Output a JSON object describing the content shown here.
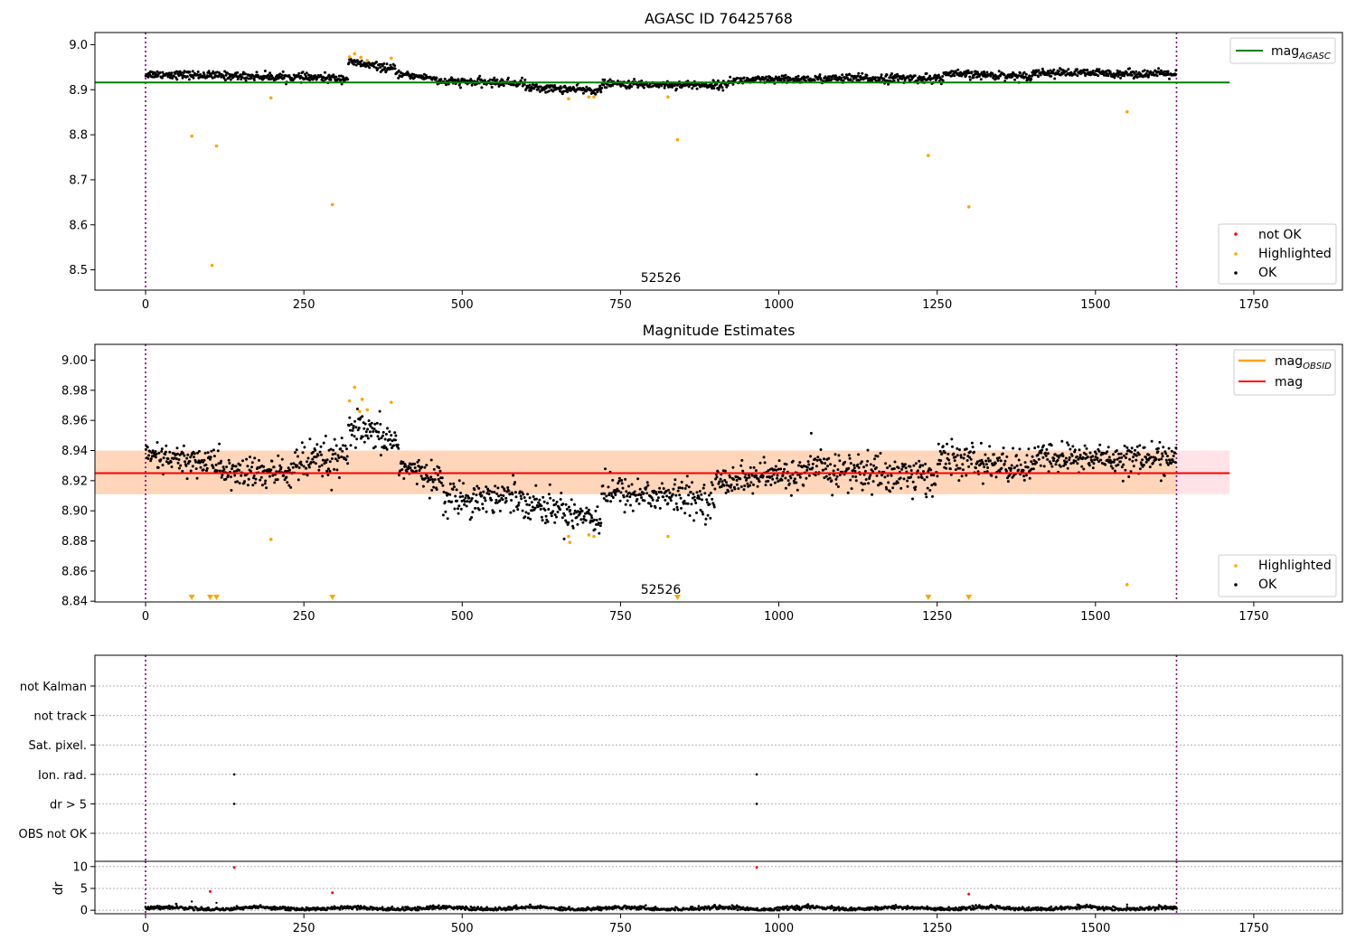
{
  "chart_data": [
    {
      "id": "top",
      "type": "scatter",
      "title": "AGASC ID 76425768",
      "xlim": [
        -80,
        1890
      ],
      "ylim": [
        8.455,
        9.027
      ],
      "xticks": [
        0,
        250,
        500,
        750,
        1000,
        1250,
        1500,
        1750
      ],
      "yticks": [
        8.5,
        8.6,
        8.7,
        8.8,
        8.9,
        9.0
      ],
      "ytick_labels": [
        "8.5",
        "8.6",
        "8.7",
        "8.8",
        "8.9",
        "9.0"
      ],
      "annotation": {
        "text": "52526",
        "x": 813,
        "y": 8.47
      },
      "vlines": [
        0,
        1628
      ],
      "hline": {
        "y": 8.916,
        "x_range": [
          -80,
          1712
        ],
        "color": "#008000"
      },
      "legend_upper": [
        {
          "label": "mag",
          "sub": "AGASC",
          "color": "#008000"
        }
      ],
      "legend_lower": [
        {
          "label": "not OK",
          "color": "#ff0000"
        },
        {
          "label": "Highlighted",
          "color": "#ffa500"
        },
        {
          "label": "OK",
          "color": "#000000"
        }
      ],
      "series": [
        {
          "kind": "ok",
          "color": "#000000",
          "segments": [
            {
              "x": [
                0,
                320
              ],
              "y": [
                8.935,
                8.925
              ],
              "spread": 0.008
            },
            {
              "x": [
                320,
                395
              ],
              "y": [
                8.962,
                8.945
              ],
              "spread": 0.008
            },
            {
              "x": [
                395,
                460
              ],
              "y": [
                8.935,
                8.925
              ],
              "spread": 0.006
            },
            {
              "x": [
                460,
                600
              ],
              "y": [
                8.918,
                8.915
              ],
              "spread": 0.008
            },
            {
              "x": [
                600,
                720
              ],
              "y": [
                8.905,
                8.898
              ],
              "spread": 0.008
            },
            {
              "x": [
                720,
                920
              ],
              "y": [
                8.913,
                8.91
              ],
              "spread": 0.008
            },
            {
              "x": [
                920,
                1100
              ],
              "y": [
                8.92,
                8.925
              ],
              "spread": 0.008
            },
            {
              "x": [
                1100,
                1260
              ],
              "y": [
                8.925,
                8.925
              ],
              "spread": 0.009
            },
            {
              "x": [
                1260,
                1400
              ],
              "y": [
                8.935,
                8.93
              ],
              "spread": 0.008
            },
            {
              "x": [
                1400,
                1628
              ],
              "y": [
                8.938,
                8.935
              ],
              "spread": 0.008
            }
          ]
        },
        {
          "kind": "highlighted",
          "color": "#ffa500",
          "points": [
            [
              73,
              8.797
            ],
            [
              105,
              8.51
            ],
            [
              112,
              8.775
            ],
            [
              198,
              8.882
            ],
            [
              295,
              8.645
            ],
            [
              322,
              8.973
            ],
            [
              330,
              8.98
            ],
            [
              340,
              8.972
            ],
            [
              350,
              8.965
            ],
            [
              388,
              8.97
            ],
            [
              668,
              8.88
            ],
            [
              700,
              8.884
            ],
            [
              708,
              8.884
            ],
            [
              825,
              8.884
            ],
            [
              840,
              8.789
            ],
            [
              1236,
              8.754
            ],
            [
              1300,
              8.64
            ],
            [
              1550,
              8.851
            ]
          ]
        }
      ]
    },
    {
      "id": "middle",
      "type": "scatter",
      "title": "Magnitude Estimates",
      "xlim": [
        -80,
        1890
      ],
      "ylim": [
        8.8395,
        9.0105
      ],
      "xticks": [
        0,
        250,
        500,
        750,
        1000,
        1250,
        1500,
        1750
      ],
      "yticks": [
        8.84,
        8.86,
        8.88,
        8.9,
        8.92,
        8.94,
        8.96,
        8.98,
        9.0
      ],
      "ytick_labels": [
        "8.84",
        "8.86",
        "8.88",
        "8.90",
        "8.92",
        "8.94",
        "8.96",
        "8.98",
        "9.00"
      ],
      "annotation": {
        "text": "52526",
        "x": 813,
        "y": 8.845
      },
      "vlines": [
        0,
        1628
      ],
      "hline": {
        "y": 8.925,
        "x_range": [
          -80,
          1712
        ],
        "color": "#ff0000"
      },
      "band": {
        "y_range": [
          8.911,
          8.94
        ],
        "x_range": [
          -80,
          1712
        ]
      },
      "legend_upper": [
        {
          "label": "mag",
          "sub": "OBSID",
          "color": "#ffa500"
        },
        {
          "label": "mag",
          "sub": "",
          "color": "#ff0000"
        }
      ],
      "legend_lower": [
        {
          "label": "Highlighted",
          "color": "#ffa500"
        },
        {
          "label": "OK",
          "color": "#000000"
        }
      ],
      "series": [
        {
          "kind": "ok",
          "color": "#000000",
          "segments": [
            {
              "x": [
                0,
                120
              ],
              "y": [
                8.935,
                8.932
              ],
              "spread": 0.009
            },
            {
              "x": [
                120,
                230
              ],
              "y": [
                8.925,
                8.925
              ],
              "spread": 0.01
            },
            {
              "x": [
                230,
                320
              ],
              "y": [
                8.93,
                8.935
              ],
              "spread": 0.012
            },
            {
              "x": [
                320,
                400
              ],
              "y": [
                8.955,
                8.945
              ],
              "spread": 0.01
            },
            {
              "x": [
                400,
                470
              ],
              "y": [
                8.93,
                8.92
              ],
              "spread": 0.008
            },
            {
              "x": [
                470,
                600
              ],
              "y": [
                8.908,
                8.91
              ],
              "spread": 0.01
            },
            {
              "x": [
                600,
                720
              ],
              "y": [
                8.905,
                8.895
              ],
              "spread": 0.01
            },
            {
              "x": [
                720,
                900
              ],
              "y": [
                8.913,
                8.907
              ],
              "spread": 0.01
            },
            {
              "x": [
                900,
                1050
              ],
              "y": [
                8.92,
                8.925
              ],
              "spread": 0.009
            },
            {
              "x": [
                1050,
                1250
              ],
              "y": [
                8.928,
                8.922
              ],
              "spread": 0.012
            },
            {
              "x": [
                1250,
                1400
              ],
              "y": [
                8.935,
                8.928
              ],
              "spread": 0.01
            },
            {
              "x": [
                1400,
                1628
              ],
              "y": [
                8.935,
                8.935
              ],
              "spread": 0.009
            }
          ]
        },
        {
          "kind": "highlighted",
          "color": "#ffa500",
          "points": [
            [
              198,
              8.881
            ],
            [
              322,
              8.973
            ],
            [
              330,
              8.982
            ],
            [
              338,
              8.966
            ],
            [
              342,
              8.974
            ],
            [
              350,
              8.967
            ],
            [
              388,
              8.972
            ],
            [
              668,
              8.883
            ],
            [
              670,
              8.879
            ],
            [
              700,
              8.884
            ],
            [
              708,
              8.883
            ],
            [
              825,
              8.883
            ],
            [
              1550,
              8.851
            ]
          ]
        },
        {
          "kind": "below-range",
          "color": "#ffa500",
          "marker": "triangle-down",
          "x": [
            73,
            102,
            112,
            295,
            840,
            1236,
            1300
          ]
        }
      ]
    },
    {
      "id": "flags",
      "type": "scatter",
      "xlim": [
        -80,
        1890
      ],
      "categories": [
        "not Kalman",
        "not track",
        "Sat. pixel.",
        "Ion. rad.",
        "dr > 5",
        "OBS not OK"
      ],
      "vlines": [
        0,
        1628
      ],
      "points": [
        {
          "category": "Ion. rad.",
          "x": [
            140,
            965
          ]
        },
        {
          "category": "dr > 5",
          "x": [
            140,
            965
          ]
        }
      ]
    },
    {
      "id": "dr",
      "type": "scatter",
      "ylabel": "dr",
      "xlim": [
        -80,
        1890
      ],
      "ylim": [
        -0.8,
        11.2
      ],
      "xticks": [
        0,
        250,
        500,
        750,
        1000,
        1250,
        1500,
        1750
      ],
      "yticks": [
        0,
        5,
        10
      ],
      "ytick_labels": [
        "0",
        "5",
        "10"
      ],
      "vlines": [
        0,
        1628
      ],
      "series": [
        {
          "kind": "ok",
          "color": "#000000",
          "x_range": [
            0,
            1628
          ],
          "y_base": 0.45,
          "spread": 0.6
        },
        {
          "kind": "not-ok",
          "color": "#ff0000",
          "points": [
            [
              140,
              9.8
            ],
            [
              965,
              9.8
            ],
            [
              102,
              4.3
            ],
            [
              295,
              4.0
            ],
            [
              1300,
              3.7
            ]
          ]
        },
        {
          "kind": "ok-outliers",
          "color": "#000000",
          "points": [
            [
              73,
              2.0
            ],
            [
              112,
              1.7
            ],
            [
              1550,
              1.3
            ]
          ]
        }
      ]
    }
  ]
}
